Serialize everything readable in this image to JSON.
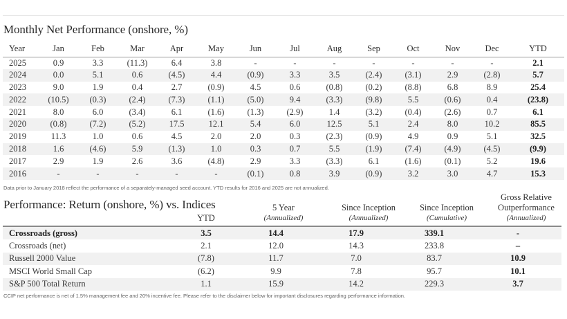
{
  "monthly": {
    "title": "Monthly Net Performance (onshore, %)",
    "columns": [
      "Year",
      "Jan",
      "Feb",
      "Mar",
      "Apr",
      "May",
      "Jun",
      "Jul",
      "Aug",
      "Sep",
      "Oct",
      "Nov",
      "Dec",
      "YTD"
    ],
    "rows": [
      [
        "2025",
        "0.9",
        "3.3",
        "(11.3)",
        "6.4",
        "3.8",
        "-",
        "-",
        "-",
        "-",
        "-",
        "-",
        "-",
        "2.1"
      ],
      [
        "2024",
        "0.0",
        "5.1",
        "0.6",
        "(4.5)",
        "4.4",
        "(0.9)",
        "3.3",
        "3.5",
        "(2.4)",
        "(3.1)",
        "2.9",
        "(2.8)",
        "5.7"
      ],
      [
        "2023",
        "9.0",
        "1.9",
        "0.4",
        "2.7",
        "(0.9)",
        "4.5",
        "0.6",
        "(0.8)",
        "(0.2)",
        "(8.8)",
        "6.8",
        "8.9",
        "25.4"
      ],
      [
        "2022",
        "(10.5)",
        "(0.3)",
        "(2.4)",
        "(7.3)",
        "(1.1)",
        "(5.0)",
        "9.4",
        "(3.3)",
        "(9.8)",
        "5.5",
        "(0.6)",
        "0.4",
        "(23.8)"
      ],
      [
        "2021",
        "8.0",
        "6.0",
        "(3.4)",
        "6.1",
        "(1.6)",
        "(1.3)",
        "(2.9)",
        "1.4",
        "(3.2)",
        "(0.4)",
        "(2.6)",
        "0.7",
        "6.1"
      ],
      [
        "2020",
        "(0.8)",
        "(7.2)",
        "(5.2)",
        "17.5",
        "12.1",
        "5.4",
        "6.0",
        "12.5",
        "5.1",
        "2.4",
        "8.0",
        "10.2",
        "85.5"
      ],
      [
        "2019",
        "11.3",
        "1.0",
        "0.6",
        "4.5",
        "2.0",
        "2.0",
        "0.3",
        "(2.3)",
        "(0.9)",
        "4.9",
        "0.9",
        "5.1",
        "32.5"
      ],
      [
        "2018",
        "1.6",
        "(4.6)",
        "5.9",
        "(1.3)",
        "1.0",
        "0.3",
        "0.7",
        "5.5",
        "(1.9)",
        "(7.4)",
        "(4.9)",
        "(4.5)",
        "(9.9)"
      ],
      [
        "2017",
        "2.9",
        "1.9",
        "2.6",
        "3.6",
        "(4.8)",
        "2.9",
        "3.3",
        "(3.3)",
        "6.1",
        "(1.6)",
        "(0.1)",
        "5.2",
        "19.6"
      ],
      [
        "2016",
        "-",
        "-",
        "-",
        "-",
        "-",
        "(0.1)",
        "0.8",
        "3.9",
        "(0.9)",
        "3.2",
        "3.0",
        "4.7",
        "15.3"
      ]
    ],
    "note": "Data prior to January 2018 reflect the performance of a separately-managed seed account.  YTD results for 2016 and 2025 are not annualized."
  },
  "performance": {
    "title": "Performance: Return (onshore, %) vs. Indices",
    "headers": {
      "ytd": "YTD",
      "five_year": "5 Year",
      "five_year_sub": "(Annualized)",
      "si_ann": "Since Inception",
      "si_ann_sub": "(Annualized)",
      "si_cum": "Since Inception",
      "si_cum_sub": "(Cumulative)",
      "gro_line1": "Gross Relative",
      "gro_line2": "Outperformance",
      "gro_sub": "(Annualized)"
    },
    "rows": [
      [
        "Crossroads (gross)",
        "3.5",
        "14.4",
        "17.9",
        "339.1",
        "-"
      ],
      [
        "Crossroads (net)",
        "2.1",
        "12.0",
        "14.3",
        "233.8",
        "–"
      ],
      [
        "Russell 2000 Value",
        "(7.8)",
        "11.7",
        "7.0",
        "83.7",
        "10.9"
      ],
      [
        "MSCI World Small Cap",
        "(6.2)",
        "9.9",
        "7.8",
        "95.7",
        "10.1"
      ],
      [
        "S&P 500 Total Return",
        "1.1",
        "15.9",
        "14.2",
        "229.3",
        "3.7"
      ]
    ],
    "note": "CCIP net performance is net of 1.5% management fee and 20% incentive fee. Please refer to the disclaimer below for important disclosures regarding performance information."
  }
}
